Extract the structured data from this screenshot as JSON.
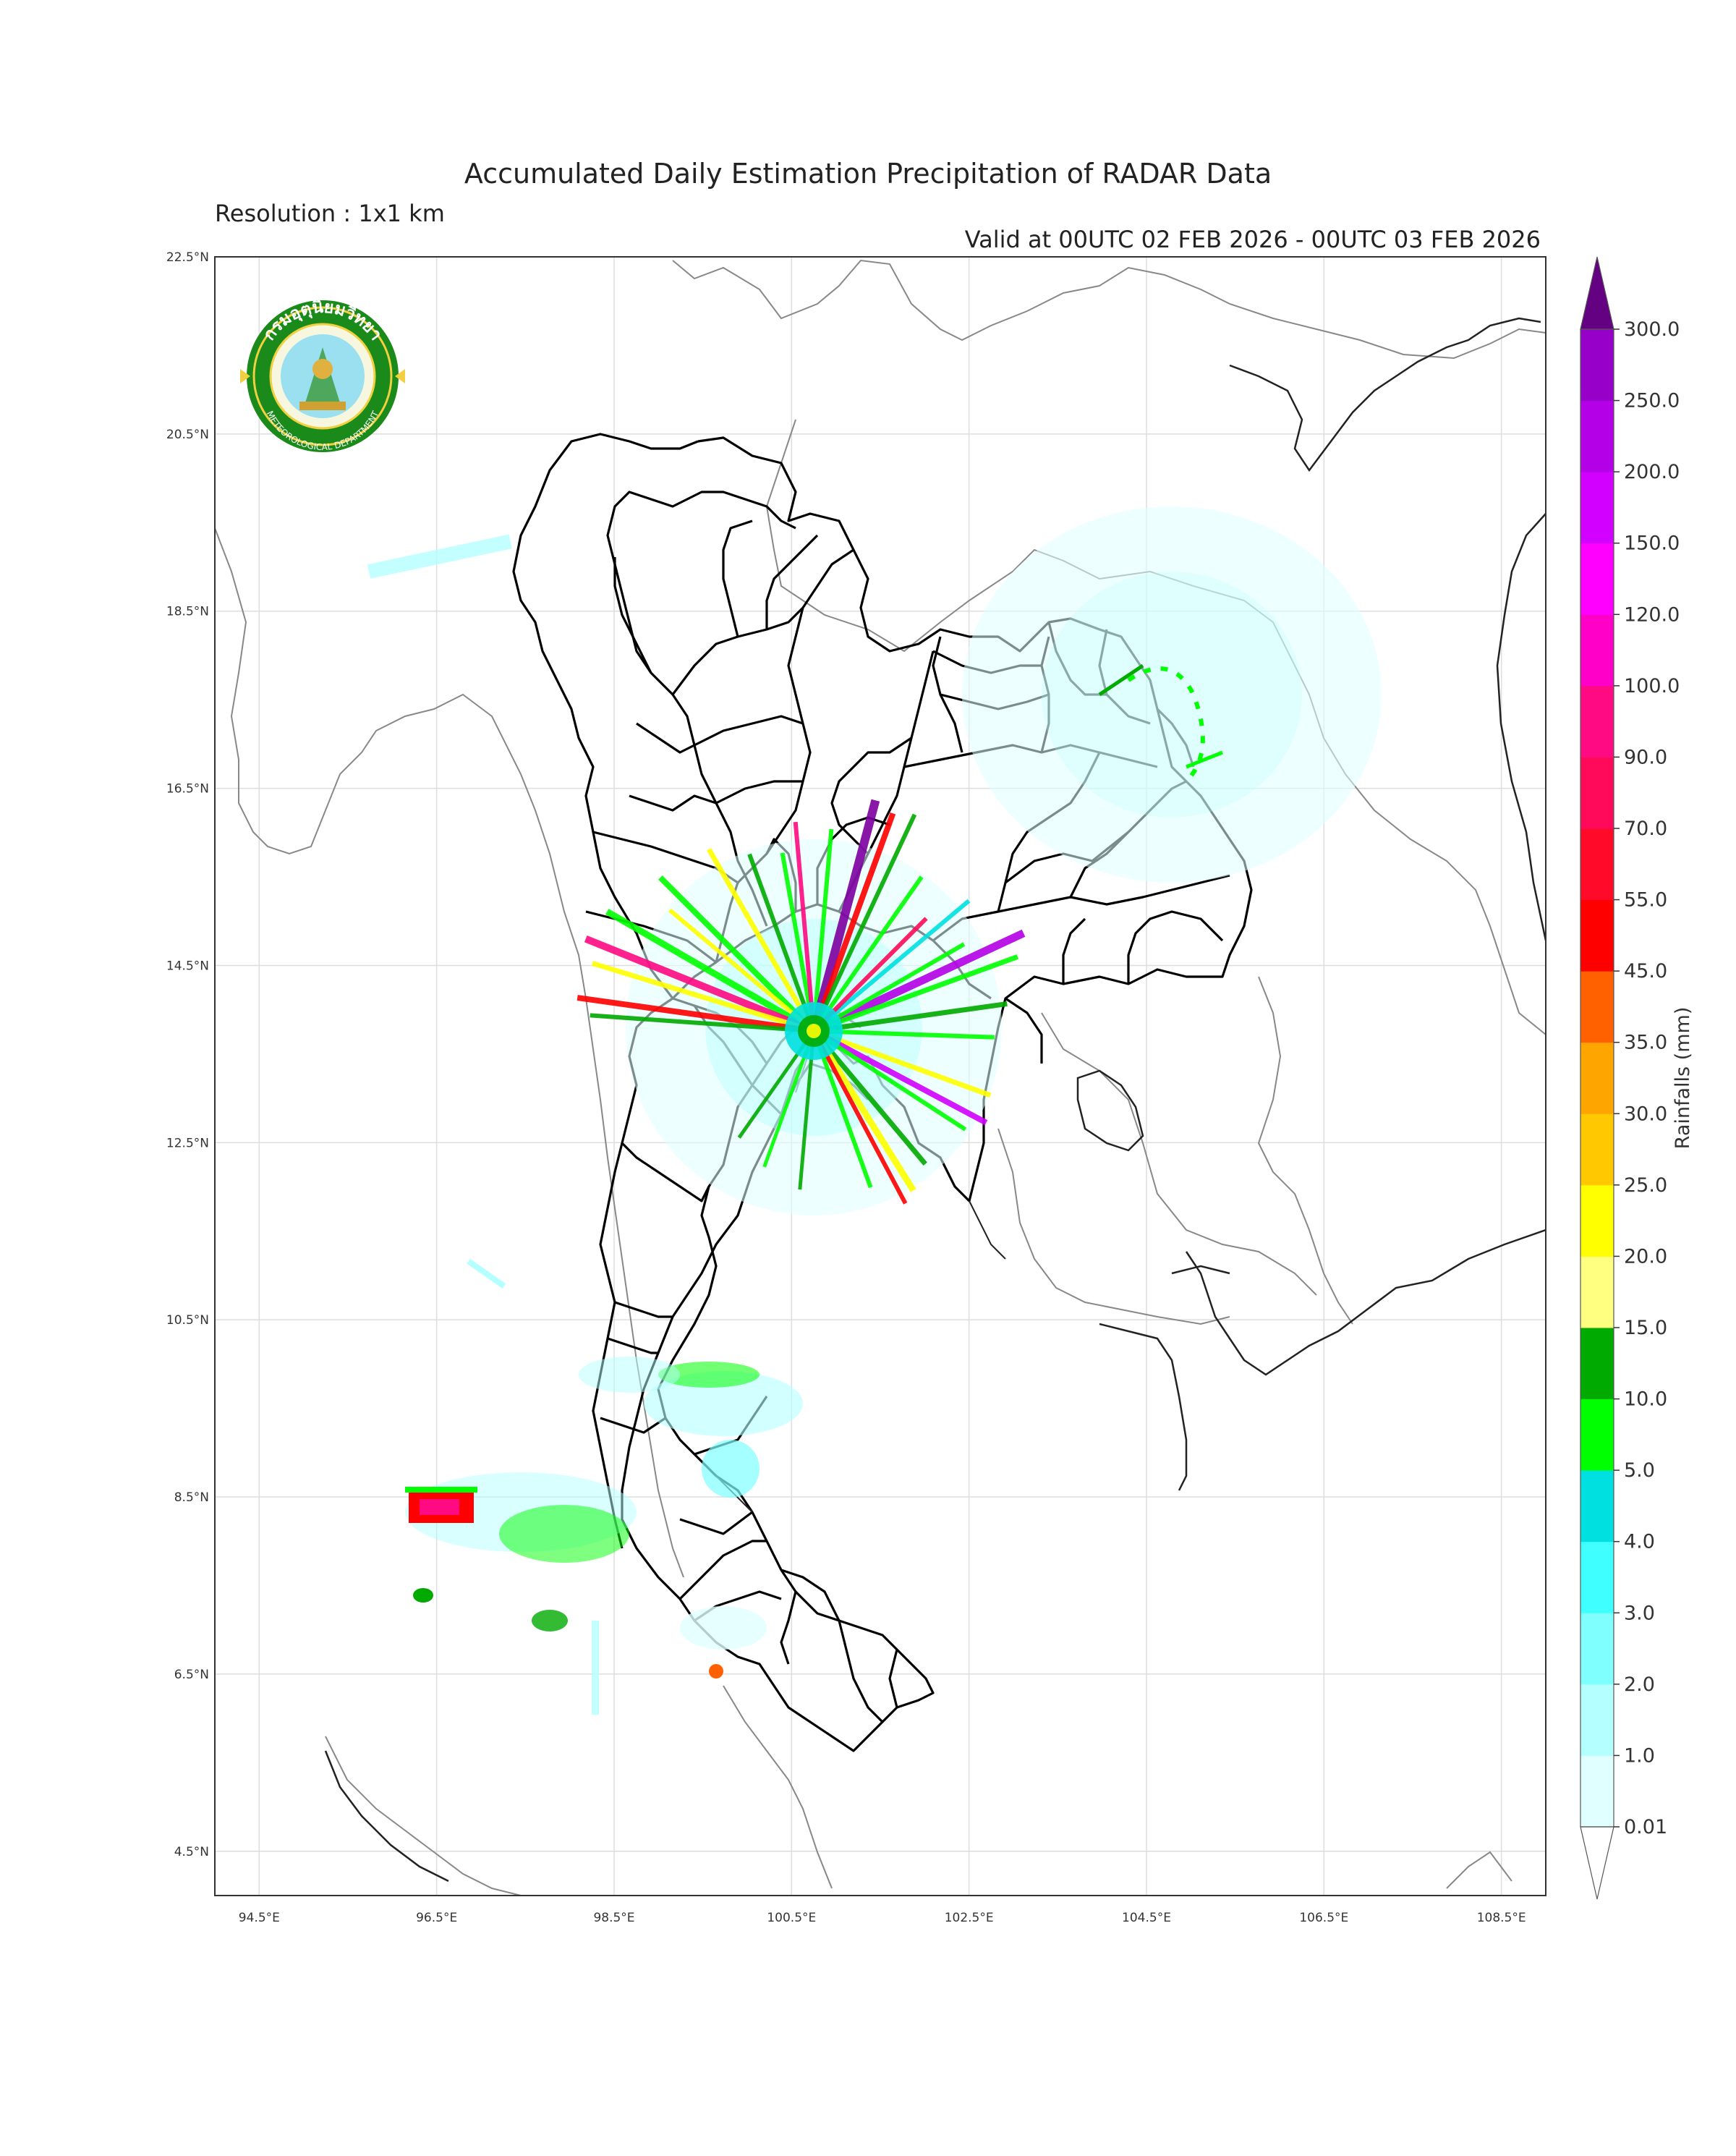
{
  "title": "Accumulated Daily Estimation Precipitation of RADAR Data",
  "subtitle": "Resolution : 1x1 km",
  "valid_time": "Valid at 00UTC 02 FEB 2026 - 00UTC 03 FEB 2026",
  "logo": {
    "thai_text": "กรมอุตุนิยมวิทยา",
    "english_text": "METEOROLOGICAL DEPARTMENT"
  },
  "map": {
    "lon_range": [
      94.0,
      109.0
    ],
    "lat_range": [
      4.0,
      22.5
    ],
    "lon_ticks": [
      "94.5°E",
      "96.5°E",
      "98.5°E",
      "100.5°E",
      "102.5°E",
      "104.5°E",
      "106.5°E",
      "108.5°E"
    ],
    "lat_ticks": [
      "22.5°N",
      "20.5°N",
      "18.5°N",
      "16.5°N",
      "14.5°N",
      "12.5°N",
      "10.5°N",
      "8.5°N",
      "6.5°N",
      "4.5°N"
    ],
    "grid": true
  },
  "colorbar": {
    "title": "Rainfalls (mm)",
    "labels": [
      "0.01",
      "1.0",
      "2.0",
      "3.0",
      "4.0",
      "5.0",
      "10.0",
      "15.0",
      "20.0",
      "25.0",
      "30.0",
      "35.0",
      "45.0",
      "55.0",
      "70.0",
      "90.0",
      "100.0",
      "120.0",
      "150.0",
      "200.0",
      "250.0",
      "300.0"
    ],
    "colors": [
      "#e0ffff",
      "#b4ffff",
      "#80ffff",
      "#40ffff",
      "#00e0e0",
      "#00ff00",
      "#00aa00",
      "#ffff80",
      "#ffff00",
      "#ffc800",
      "#ffa500",
      "#ff6000",
      "#ff0000",
      "#ff0a28",
      "#ff0a5a",
      "#ff0a82",
      "#ff00c8",
      "#ff00ff",
      "#d200ff",
      "#b400e6",
      "#9600c8",
      "#7d00a0",
      "#640082"
    ]
  }
}
